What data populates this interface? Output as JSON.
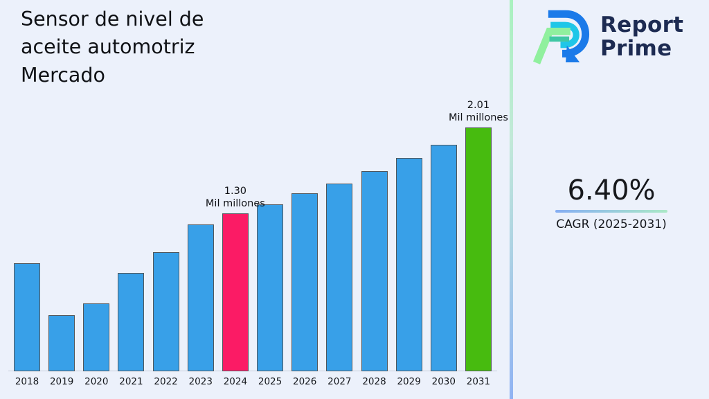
{
  "title": "Sensor de nivel de aceite automotriz Mercado",
  "logo": {
    "line1": "Report",
    "line2": "Prime",
    "text_color": "#1d2b52",
    "icon_colors": {
      "blue": "#1b7ae9",
      "cyan": "#1fc6e8",
      "green": "#90f09e",
      "teal": "#3fc7a4"
    }
  },
  "cagr": {
    "value": "6.40%",
    "label": "CAGR (2025-2031)"
  },
  "chart_data": {
    "type": "bar",
    "title": "Sensor de nivel de aceite automotriz Mercado",
    "xlabel": "",
    "ylabel": "",
    "unit": "Mil millones",
    "categories": [
      "2018",
      "2019",
      "2020",
      "2021",
      "2022",
      "2023",
      "2024",
      "2025",
      "2026",
      "2027",
      "2028",
      "2029",
      "2030",
      "2031"
    ],
    "values": [
      0.89,
      0.46,
      0.56,
      0.81,
      0.98,
      1.21,
      1.3,
      1.38,
      1.47,
      1.55,
      1.65,
      1.76,
      1.87,
      2.01
    ],
    "labeled_points": {
      "2024": 1.3,
      "2031": 2.01
    },
    "annotations": [
      {
        "year": "2024",
        "value_label": "1.30",
        "unit_label": "Mil millones"
      },
      {
        "year": "2031",
        "value_label": "2.01",
        "unit_label": "Mil millones"
      }
    ],
    "bar_colors": {
      "default": "#38a0e8",
      "2024": "#fb1b65",
      "2031": "#47bb0f"
    },
    "bar_border_color": "#51575d",
    "ylim": [
      0,
      2.2
    ],
    "grid": false,
    "legend": false
  }
}
